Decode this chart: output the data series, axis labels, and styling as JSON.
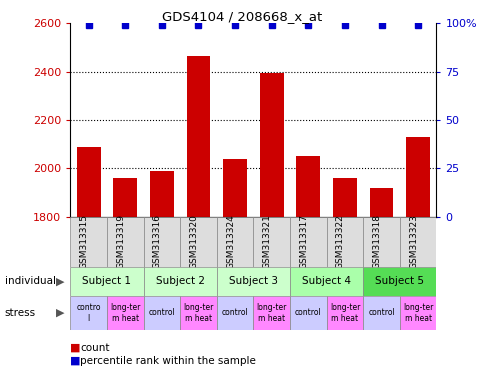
{
  "title": "GDS4104 / 208668_x_at",
  "samples": [
    "GSM313315",
    "GSM313319",
    "GSM313316",
    "GSM313320",
    "GSM313324",
    "GSM313321",
    "GSM313317",
    "GSM313322",
    "GSM313318",
    "GSM313323"
  ],
  "counts": [
    2090,
    1960,
    1990,
    2465,
    2040,
    2395,
    2050,
    1960,
    1920,
    2130
  ],
  "percentiles": [
    99,
    99,
    99,
    99,
    99,
    99,
    99,
    99,
    99,
    99
  ],
  "ylim_left": [
    1800,
    2600
  ],
  "ylim_right": [
    0,
    100
  ],
  "yticks_left": [
    1800,
    2000,
    2200,
    2400,
    2600
  ],
  "yticks_right": [
    0,
    25,
    50,
    75,
    100
  ],
  "bar_color": "#cc0000",
  "dot_color": "#0000cc",
  "subjects": [
    {
      "label": "Subject 1",
      "start": 0,
      "end": 2,
      "color": "#ccffcc"
    },
    {
      "label": "Subject 2",
      "start": 2,
      "end": 4,
      "color": "#ccffcc"
    },
    {
      "label": "Subject 3",
      "start": 4,
      "end": 6,
      "color": "#ccffcc"
    },
    {
      "label": "Subject 4",
      "start": 6,
      "end": 8,
      "color": "#aaffaa"
    },
    {
      "label": "Subject 5",
      "start": 8,
      "end": 10,
      "color": "#55dd55"
    }
  ],
  "stress_labels": [
    "contro\nl",
    "long-ter\nm heat",
    "control",
    "long-ter\nm heat",
    "control",
    "long-ter\nm heat",
    "control",
    "long-ter\nm heat",
    "control",
    "long-ter\nm heat"
  ],
  "stress_colors": [
    "#ccccff",
    "#ff88ff",
    "#ccccff",
    "#ff88ff",
    "#ccccff",
    "#ff88ff",
    "#ccccff",
    "#ff88ff",
    "#ccccff",
    "#ff88ff"
  ],
  "bg_color": "#ffffff",
  "xlabel_color": "#cc0000",
  "ylabel_right_color": "#0000cc",
  "gridline_yticks": [
    2000,
    2200,
    2400
  ]
}
